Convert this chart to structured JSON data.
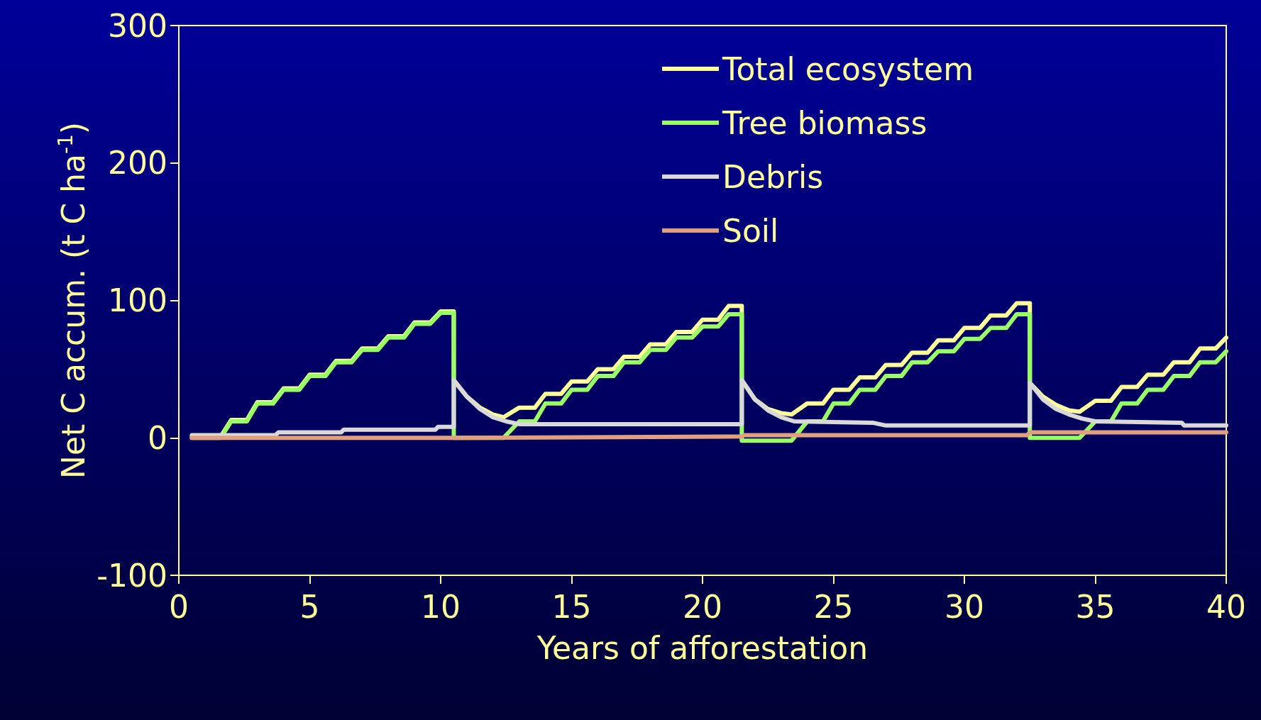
{
  "chart_data": {
    "type": "line",
    "xlabel": "Years of afforestation",
    "ylabel": "Net C accum. (t C ha$^{-1}$)",
    "xlim": [
      0,
      40
    ],
    "xticks": [
      0,
      5,
      10,
      15,
      20,
      25,
      30,
      35,
      40
    ],
    "ylim": [
      -100,
      300
    ],
    "yticks": [
      -100,
      0,
      100,
      200,
      300
    ],
    "grid": false,
    "legend": "top right",
    "marker": "none",
    "line_style": "solid",
    "series": [
      {
        "name": "Total ecosystem",
        "color": "#ffff99",
        "x": [
          0.5,
          1.6,
          2.0,
          2.6,
          3.0,
          3.6,
          4.0,
          4.6,
          5.0,
          5.6,
          6.0,
          6.6,
          7.0,
          7.6,
          8.0,
          8.6,
          9.0,
          9.6,
          10.0,
          10.5,
          10.5,
          11,
          11.5,
          12,
          12.4,
          13,
          13.6,
          14,
          14.6,
          15,
          15.6,
          16,
          16.6,
          17,
          17.6,
          18,
          18.6,
          19,
          19.6,
          20,
          20.6,
          21,
          21.5,
          21.5,
          22,
          22.5,
          23,
          23.4,
          24,
          24.6,
          25,
          25.6,
          26,
          26.6,
          27,
          27.6,
          28,
          28.6,
          29,
          29.6,
          30,
          30.6,
          31,
          31.6,
          32,
          32.5,
          32.5,
          33,
          33.5,
          34,
          34.4,
          35,
          35.6,
          36,
          36.6,
          37,
          37.6,
          38,
          38.6,
          39,
          39.6,
          40
        ],
        "values": [
          1,
          1,
          13,
          13,
          26,
          26,
          36,
          36,
          46,
          46,
          56,
          56,
          65,
          65,
          74,
          74,
          84,
          84,
          92,
          92,
          42,
          30,
          22,
          17,
          15,
          22,
          22,
          32,
          32,
          41,
          41,
          50,
          50,
          59,
          59,
          68,
          68,
          77,
          77,
          86,
          86,
          96,
          96,
          42,
          28,
          21,
          18,
          17,
          25,
          25,
          35,
          35,
          44,
          44,
          53,
          53,
          62,
          62,
          71,
          71,
          80,
          80,
          89,
          89,
          98,
          98,
          40,
          30,
          24,
          20,
          19,
          27,
          27,
          37,
          37,
          46,
          46,
          55,
          55,
          65,
          65,
          73
        ]
      },
      {
        "name": "Tree biomass",
        "color": "#99ff66",
        "x": [
          0.5,
          1.6,
          2.0,
          2.6,
          3.0,
          3.6,
          4.0,
          4.6,
          5.0,
          5.6,
          6.0,
          6.6,
          7.0,
          7.6,
          8.0,
          8.6,
          9.0,
          9.6,
          10.0,
          10.5,
          10.5,
          12.4,
          13,
          13.6,
          14,
          14.6,
          15,
          15.6,
          16,
          16.6,
          17,
          17.6,
          18,
          18.6,
          19,
          19.6,
          20,
          20.6,
          21,
          21.5,
          21.5,
          23.4,
          24,
          24.6,
          25,
          25.6,
          26,
          26.6,
          27,
          27.6,
          28,
          28.6,
          29,
          29.6,
          30,
          30.6,
          31,
          31.6,
          32,
          32.5,
          32.5,
          34.4,
          35,
          35.6,
          36,
          36.6,
          37,
          37.6,
          38,
          38.6,
          39,
          39.6,
          40
        ],
        "values": [
          0,
          0,
          12,
          12,
          25,
          25,
          35,
          35,
          45,
          45,
          55,
          55,
          64,
          64,
          73,
          73,
          83,
          83,
          91,
          91,
          0,
          0,
          12,
          12,
          25,
          25,
          35,
          35,
          45,
          45,
          55,
          55,
          64,
          64,
          73,
          73,
          81,
          81,
          90,
          90,
          -2,
          -2,
          12,
          12,
          25,
          25,
          35,
          35,
          45,
          45,
          55,
          55,
          63,
          63,
          72,
          72,
          80,
          80,
          90,
          90,
          0,
          0,
          12,
          12,
          25,
          25,
          35,
          35,
          45,
          45,
          55,
          55,
          63
        ]
      },
      {
        "name": "Debris",
        "color": "#d9d9d9",
        "x": [
          0.5,
          3.7,
          3.8,
          6.2,
          6.3,
          9.8,
          9.9,
          10.5,
          10.5,
          11,
          11.5,
          12,
          12.5,
          13,
          21.5,
          21.5,
          22,
          22.5,
          23,
          23.5,
          26.5,
          27,
          32.5,
          32.5,
          33,
          33.5,
          34,
          34.5,
          35,
          38.3,
          38.4,
          40
        ],
        "values": [
          2,
          2,
          4,
          4,
          6,
          6,
          8,
          8,
          42,
          30,
          21,
          15,
          12,
          10,
          10,
          42,
          28,
          20,
          15,
          12,
          11,
          9,
          9,
          40,
          28,
          21,
          17,
          14,
          12,
          11,
          9,
          9
        ]
      },
      {
        "name": "Soil",
        "color": "#e0a080",
        "x": [
          0.5,
          10.5,
          21.5,
          21.6,
          32.4,
          32.5,
          40
        ],
        "values": [
          0,
          0,
          1,
          2,
          2,
          4,
          4
        ]
      }
    ]
  }
}
